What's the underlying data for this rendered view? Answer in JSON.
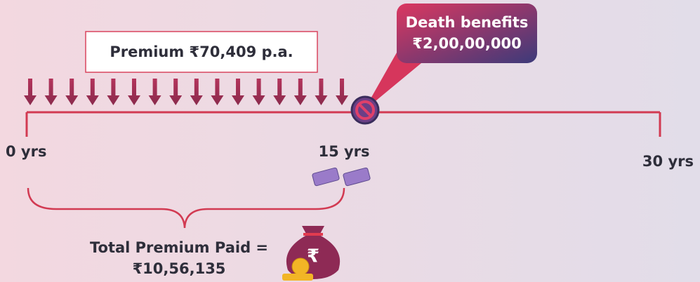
{
  "premium_box": {
    "text": "Premium ₹70,409 p.a."
  },
  "death_benefit": {
    "title": "Death benefits",
    "amount": "₹2,00,00,000"
  },
  "timeline": {
    "labels": [
      "0 yrs",
      "15 yrs",
      "30 yrs"
    ]
  },
  "total_premium": {
    "title": "Total Premium Paid =",
    "amount": "₹10,56,135"
  }
}
